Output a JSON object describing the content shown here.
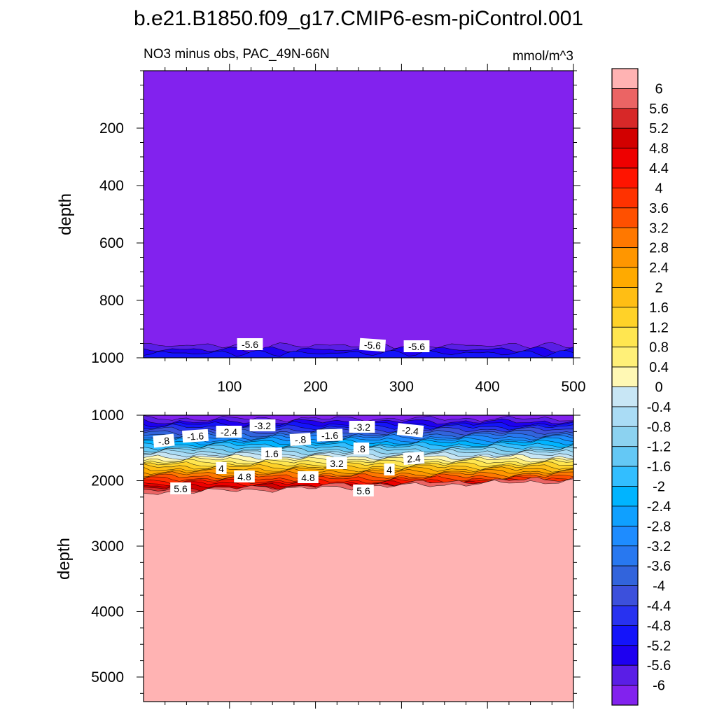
{
  "chart_data": {
    "type": "contour",
    "title": "b.e21.B1850.f09_g17.CMIP6-esm-piControl.001",
    "subtitle_left": "NO3 minus obs, PAC_49N-66N",
    "units": "mmol/m^3",
    "colorbar": {
      "levels": [
        "6",
        "5.6",
        "5.2",
        "4.8",
        "4.4",
        "4",
        "3.6",
        "3.2",
        "2.8",
        "2.4",
        "2",
        "1.6",
        "1.2",
        "0.8",
        "0.4",
        "0",
        "-0.4",
        "-0.8",
        "-1.2",
        "-1.6",
        "-2",
        "-2.4",
        "-2.8",
        "-3.2",
        "-3.6",
        "-4",
        "-4.4",
        "-4.8",
        "-5.2",
        "-5.6",
        "-6"
      ],
      "colors": [
        "#ffb3b3",
        "#eb6464",
        "#d72828",
        "#d20000",
        "#ee0000",
        "#ff1400",
        "#ff3200",
        "#ff5000",
        "#ff7800",
        "#ff9600",
        "#ffaa00",
        "#ffbe14",
        "#ffd228",
        "#ffe650",
        "#fff078",
        "#fff8b4",
        "#c8e6f5",
        "#aadcf5",
        "#8cd2f0",
        "#64c8f5",
        "#32beff",
        "#00b4ff",
        "#0fa0ff",
        "#1e8cff",
        "#2878f0",
        "#3264dc",
        "#3c50dc",
        "#2832f0",
        "#1414fa",
        "#1e00f0",
        "#5a1ee6",
        "#8222ee"
      ]
    },
    "panels": [
      {
        "name": "upper",
        "ylabel": "depth",
        "x_range": [
          0,
          500
        ],
        "y_range": [
          0,
          1000
        ],
        "y_inverted": true,
        "x_ticks": [
          "100",
          "200",
          "300",
          "400",
          "500"
        ],
        "y_ticks": [
          "200",
          "400",
          "600",
          "800",
          "1000"
        ],
        "contour_labels": [
          "-5.6",
          "-5.6",
          "-5.6"
        ]
      },
      {
        "name": "lower",
        "ylabel": "depth",
        "x_range": [
          0,
          500
        ],
        "y_range": [
          1000,
          5375
        ],
        "y_inverted": true,
        "x_ticks": [],
        "y_ticks": [
          "1000",
          "2000",
          "3000",
          "4000",
          "5000"
        ],
        "contour_labels": [
          "-.8",
          "-1.6",
          "-2.4",
          "-3.2",
          "-.8",
          "-1.6",
          "-3.2",
          "-2.4",
          ".8",
          "1.6",
          "3.2",
          "2.4",
          "4",
          "4.8",
          "4.8",
          "4",
          "5.6",
          "5.6"
        ]
      }
    ]
  }
}
